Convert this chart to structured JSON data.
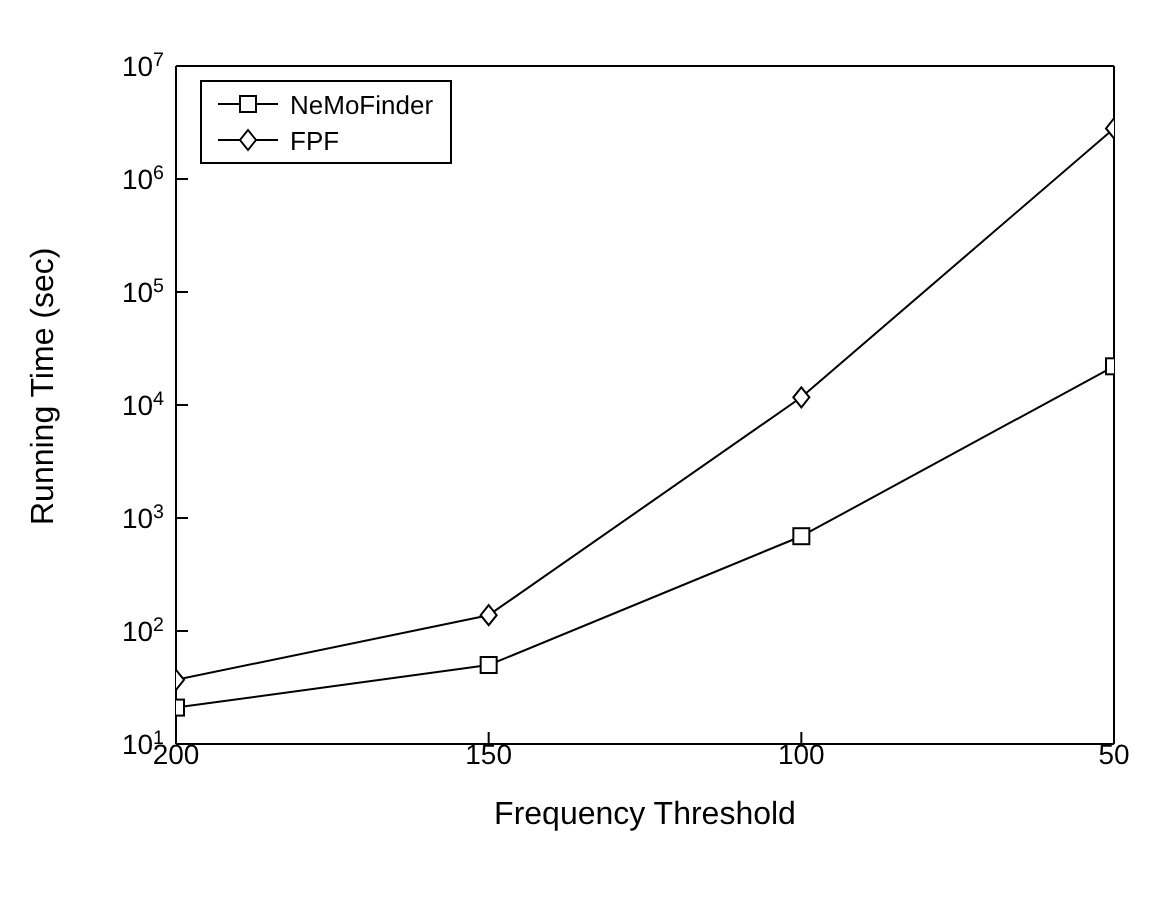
{
  "chart_data": {
    "type": "line",
    "xlabel": "Frequency Threshold",
    "ylabel": "Running Time (sec)",
    "x": [
      200,
      150,
      100,
      50
    ],
    "series": [
      {
        "name": "NeMoFinder",
        "color": "#000000",
        "marker": "square",
        "values": [
          21,
          50,
          690,
          22000
        ]
      },
      {
        "name": "FPF",
        "color": "#000000",
        "marker": "diamond",
        "values": [
          37,
          138,
          11700,
          2800000
        ]
      }
    ],
    "xlim": [
      200,
      50
    ],
    "xticks": [
      200,
      150,
      100,
      50
    ],
    "ylim": [
      10,
      10000000
    ],
    "log": "y",
    "yticks": [
      {
        "value": 10,
        "label": "10$^{1}$"
      },
      {
        "value": 100,
        "label": "10$^{2}$"
      },
      {
        "value": 1000,
        "label": "10$^{3}$"
      },
      {
        "value": 10000,
        "label": "10$^{4}$"
      },
      {
        "value": 100000,
        "label": "10$^{5}$"
      },
      {
        "value": 1000000,
        "label": "10$^{6}$"
      },
      {
        "value": 10000000,
        "label": "10$^{7}$"
      }
    ],
    "grid": false,
    "legend": "top left",
    "line_style": "solid"
  }
}
